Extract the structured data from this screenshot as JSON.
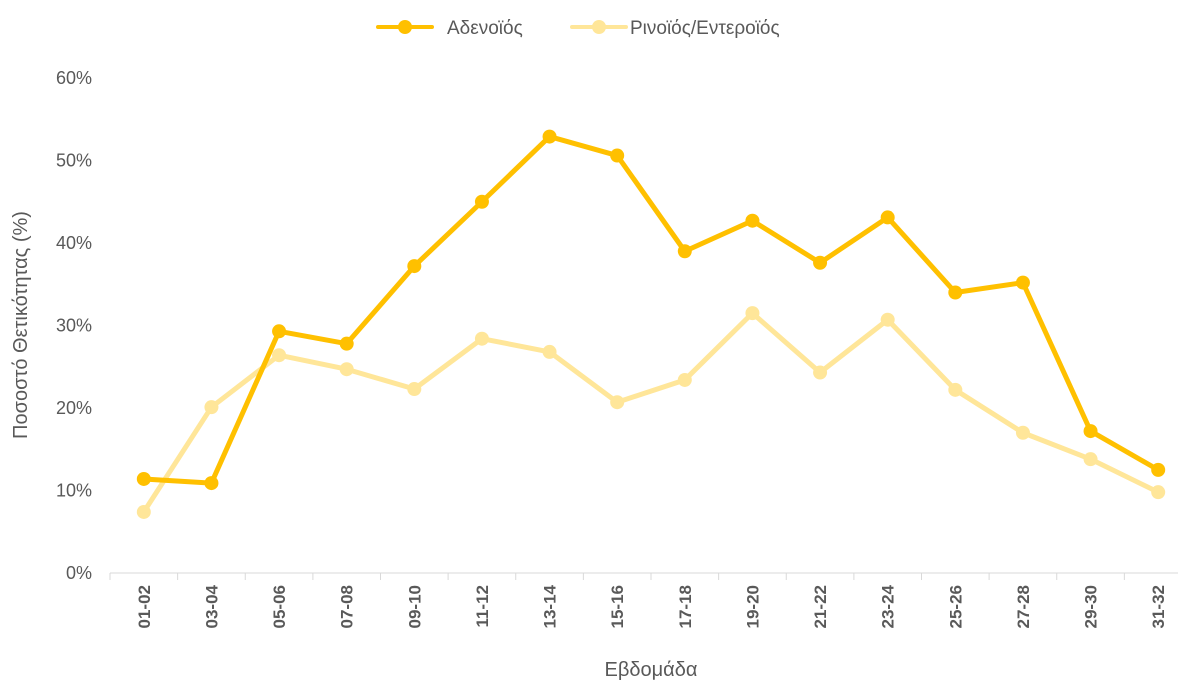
{
  "chart_data": {
    "type": "line",
    "xlabel": "Εβδομάδα",
    "ylabel": "Ποσοστό Θετικότητας (%)",
    "ylim": [
      0,
      60
    ],
    "y_ticks": [
      "0%",
      "10%",
      "20%",
      "30%",
      "40%",
      "50%",
      "60%"
    ],
    "categories": [
      "01-02",
      "03-04",
      "05-06",
      "07-08",
      "09-10",
      "11-12",
      "13-14",
      "15-16",
      "17-18",
      "19-20",
      "21-22",
      "23-24",
      "25-26",
      "27-28",
      "29-30",
      "31-32"
    ],
    "series": [
      {
        "name": "Αδενοϊός",
        "color": "#FFC000",
        "values": [
          11.4,
          10.9,
          29.3,
          27.8,
          37.2,
          45.0,
          52.9,
          50.6,
          39.0,
          42.7,
          37.6,
          43.1,
          34.0,
          35.2,
          17.2,
          12.5
        ]
      },
      {
        "name": "Ρινοϊός/Εντεροϊός",
        "color": "#FFE699",
        "values": [
          7.4,
          20.1,
          26.4,
          24.7,
          22.3,
          28.4,
          26.8,
          20.7,
          23.4,
          31.5,
          24.3,
          30.7,
          22.2,
          17.0,
          13.8,
          9.8
        ]
      }
    ],
    "grid": false,
    "legend": "top-center"
  }
}
